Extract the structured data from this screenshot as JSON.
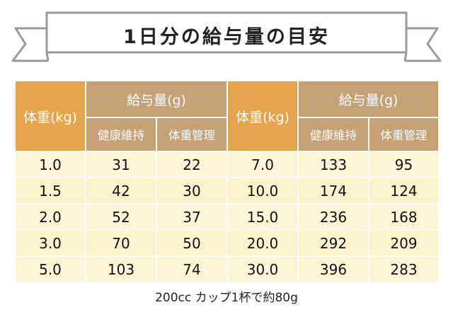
{
  "title": "1日分の給与量の目安",
  "table": {
    "weight_header_left": "体重(kg)",
    "weight_header_right": "体重(kg)",
    "amount_header": "給与量(g)",
    "sub_headers": [
      "健康維持",
      "体重管理"
    ],
    "left_rows": [
      {
        "weight": "1.0",
        "maintenance": "31",
        "weight_control": "22"
      },
      {
        "weight": "1.5",
        "maintenance": "42",
        "weight_control": "30"
      },
      {
        "weight": "2.0",
        "maintenance": "52",
        "weight_control": "37"
      },
      {
        "weight": "3.0",
        "maintenance": "70",
        "weight_control": "50"
      },
      {
        "weight": "5.0",
        "maintenance": "103",
        "weight_control": "74"
      }
    ],
    "right_rows": [
      {
        "weight": "7.0",
        "maintenance": "133",
        "weight_control": "95"
      },
      {
        "weight": "10.0",
        "maintenance": "174",
        "weight_control": "124"
      },
      {
        "weight": "15.0",
        "maintenance": "236",
        "weight_control": "168"
      },
      {
        "weight": "20.0",
        "maintenance": "292",
        "weight_control": "209"
      },
      {
        "weight": "30.0",
        "maintenance": "396",
        "weight_control": "283"
      }
    ]
  },
  "footnote": "200cc カップ1杯で約80g",
  "colors": {
    "header_orange": "#e7a44f",
    "header_gold": "#c5a175",
    "cell_cream": "#fdf6d6",
    "ribbon_line": "#9a9a9a"
  }
}
